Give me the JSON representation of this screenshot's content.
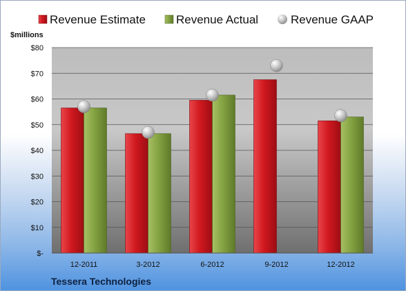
{
  "chart_data": {
    "type": "bar",
    "categories": [
      "12-2011",
      "3-2012",
      "6-2012",
      "9-2012",
      "12-2012"
    ],
    "series": [
      {
        "name": "Revenue Estimate",
        "kind": "bar",
        "color": "#c8141c",
        "values": [
          56.5,
          46.5,
          59.5,
          67.5,
          51.5
        ]
      },
      {
        "name": "Revenue Actual",
        "kind": "bar",
        "color": "#7a9a3a",
        "values": [
          56.5,
          46.5,
          61.5,
          null,
          53.0
        ]
      },
      {
        "name": "Revenue GAAP",
        "kind": "marker",
        "color": "#b9b9b9",
        "values": [
          57.0,
          47.0,
          61.5,
          73.0,
          53.5
        ]
      }
    ],
    "ylabel": "$millions",
    "ylim": [
      0,
      80
    ],
    "yticks": [
      0,
      10,
      20,
      30,
      40,
      50,
      60,
      70,
      80
    ],
    "ytick_labels": [
      "$-",
      "$10",
      "$20",
      "$30",
      "$40",
      "$50",
      "$60",
      "$70",
      "$80"
    ],
    "grid": true,
    "legend": "top"
  },
  "footer": {
    "company": "Tessera Technologies"
  }
}
